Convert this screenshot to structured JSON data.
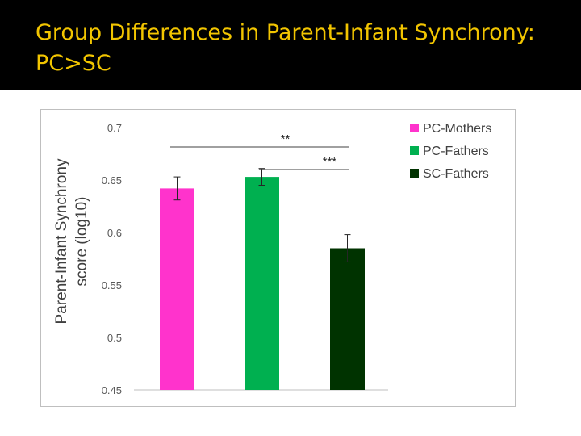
{
  "slide": {
    "title": "Group Differences in Parent-Infant Synchrony: PC>SC"
  },
  "chart_data": {
    "type": "bar",
    "categories": [
      "PC-Mothers",
      "PC-Fathers",
      "SC-Fathers"
    ],
    "values": [
      0.642,
      0.653,
      0.585
    ],
    "errors": [
      0.011,
      0.008,
      0.013
    ],
    "colors": [
      "#ff33cc",
      "#00b050",
      "#003300"
    ],
    "ylabel_line1": "Parent-Infant Synchrony",
    "ylabel_line2": "score (log10)",
    "ylim": [
      0.45,
      0.7
    ],
    "yticks": [
      0.45,
      0.5,
      0.55,
      0.6,
      0.65,
      0.7
    ],
    "ytick_labels": [
      "0.45",
      "0.5",
      "0.55",
      "0.6",
      "0.65",
      "0.7"
    ],
    "legend": [
      "PC-Mothers",
      "PC-Fathers",
      "SC-Fathers"
    ],
    "legend_position": "top-right",
    "significance": [
      {
        "label": "**",
        "from": 0,
        "to": 2
      },
      {
        "label": "***",
        "from": 1,
        "to": 2
      }
    ]
  }
}
